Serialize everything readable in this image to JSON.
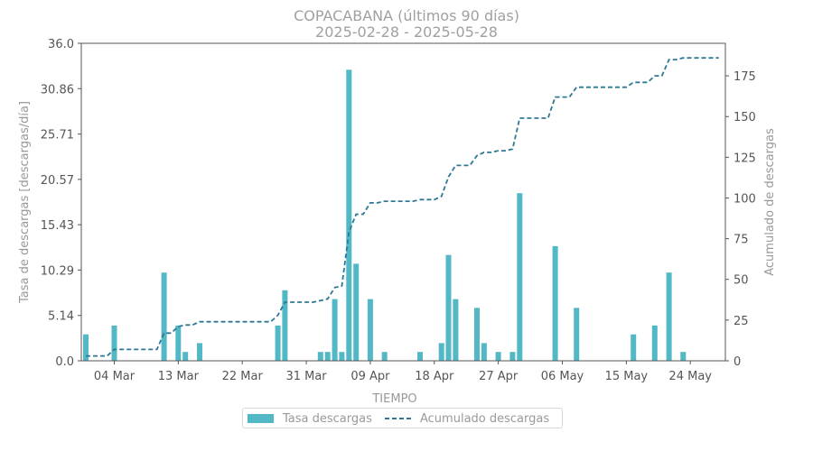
{
  "colors": {
    "bar": "#53b8c6",
    "line": "#2e7894",
    "axis": "#555555",
    "label": "#999999"
  },
  "chart_data": {
    "type": "bar+line",
    "title": "COPACABANA (últimos 90 días)",
    "subtitle": "2025-02-28  -  2025-05-28",
    "xlabel": "TIEMPO",
    "ylabel_left": "Tasa de descargas [descargas/día]",
    "ylabel_right": "Acumulado de descargas",
    "ylim_left": [
      0,
      36
    ],
    "ylim_right": [
      0,
      195
    ],
    "yticks_left": [
      "0.0",
      "5.14",
      "10.29",
      "15.43",
      "20.57",
      "25.71",
      "30.86",
      "36.0"
    ],
    "yticks_right": [
      "0",
      "25",
      "50",
      "75",
      "100",
      "125",
      "150",
      "175"
    ],
    "xticks": [
      {
        "label": "04 Mar",
        "day": 4
      },
      {
        "label": "13 Mar",
        "day": 13
      },
      {
        "label": "22 Mar",
        "day": 22
      },
      {
        "label": "31 Mar",
        "day": 31
      },
      {
        "label": "09 Apr",
        "day": 40
      },
      {
        "label": "18 Apr",
        "day": 49
      },
      {
        "label": "27 Apr",
        "day": 58
      },
      {
        "label": "06 May",
        "day": 67
      },
      {
        "label": "15 May",
        "day": 76
      },
      {
        "label": "24 May",
        "day": 85
      }
    ],
    "x_range_days": [
      0,
      89
    ],
    "bars": [
      {
        "day": 0,
        "value": 3
      },
      {
        "day": 4,
        "value": 4
      },
      {
        "day": 11,
        "value": 10
      },
      {
        "day": 13,
        "value": 4
      },
      {
        "day": 14,
        "value": 1
      },
      {
        "day": 16,
        "value": 2
      },
      {
        "day": 27,
        "value": 4
      },
      {
        "day": 28,
        "value": 8
      },
      {
        "day": 33,
        "value": 1
      },
      {
        "day": 34,
        "value": 1
      },
      {
        "day": 35,
        "value": 7
      },
      {
        "day": 36,
        "value": 1
      },
      {
        "day": 37,
        "value": 33
      },
      {
        "day": 38,
        "value": 11
      },
      {
        "day": 40,
        "value": 7
      },
      {
        "day": 42,
        "value": 1
      },
      {
        "day": 47,
        "value": 1
      },
      {
        "day": 50,
        "value": 2
      },
      {
        "day": 51,
        "value": 12
      },
      {
        "day": 52,
        "value": 7
      },
      {
        "day": 55,
        "value": 6
      },
      {
        "day": 56,
        "value": 2
      },
      {
        "day": 58,
        "value": 1
      },
      {
        "day": 60,
        "value": 1
      },
      {
        "day": 61,
        "value": 19
      },
      {
        "day": 66,
        "value": 13
      },
      {
        "day": 69,
        "value": 6
      },
      {
        "day": 77,
        "value": 3
      },
      {
        "day": 80,
        "value": 4
      },
      {
        "day": 82,
        "value": 10
      },
      {
        "day": 84,
        "value": 1
      }
    ],
    "cumulative": [
      {
        "day": 0,
        "value": 3
      },
      {
        "day": 3,
        "value": 3
      },
      {
        "day": 4,
        "value": 7
      },
      {
        "day": 10,
        "value": 7
      },
      {
        "day": 11,
        "value": 17
      },
      {
        "day": 12,
        "value": 17
      },
      {
        "day": 13,
        "value": 21
      },
      {
        "day": 14,
        "value": 22
      },
      {
        "day": 15,
        "value": 22
      },
      {
        "day": 16,
        "value": 24
      },
      {
        "day": 26,
        "value": 24
      },
      {
        "day": 27,
        "value": 28
      },
      {
        "day": 28,
        "value": 36
      },
      {
        "day": 32,
        "value": 36
      },
      {
        "day": 33,
        "value": 37
      },
      {
        "day": 34,
        "value": 38
      },
      {
        "day": 35,
        "value": 45
      },
      {
        "day": 36,
        "value": 46
      },
      {
        "day": 37,
        "value": 79
      },
      {
        "day": 38,
        "value": 90
      },
      {
        "day": 39,
        "value": 90
      },
      {
        "day": 40,
        "value": 97
      },
      {
        "day": 41,
        "value": 97
      },
      {
        "day": 42,
        "value": 98
      },
      {
        "day": 46,
        "value": 98
      },
      {
        "day": 47,
        "value": 99
      },
      {
        "day": 49,
        "value": 99
      },
      {
        "day": 50,
        "value": 101
      },
      {
        "day": 51,
        "value": 113
      },
      {
        "day": 52,
        "value": 120
      },
      {
        "day": 54,
        "value": 120
      },
      {
        "day": 55,
        "value": 126
      },
      {
        "day": 56,
        "value": 128
      },
      {
        "day": 57,
        "value": 128
      },
      {
        "day": 58,
        "value": 129
      },
      {
        "day": 59,
        "value": 129
      },
      {
        "day": 60,
        "value": 130
      },
      {
        "day": 61,
        "value": 149
      },
      {
        "day": 65,
        "value": 149
      },
      {
        "day": 66,
        "value": 162
      },
      {
        "day": 68,
        "value": 162
      },
      {
        "day": 69,
        "value": 168
      },
      {
        "day": 76,
        "value": 168
      },
      {
        "day": 77,
        "value": 171
      },
      {
        "day": 79,
        "value": 171
      },
      {
        "day": 80,
        "value": 175
      },
      {
        "day": 81,
        "value": 175
      },
      {
        "day": 82,
        "value": 185
      },
      {
        "day": 83,
        "value": 185
      },
      {
        "day": 84,
        "value": 186
      },
      {
        "day": 89,
        "value": 186
      }
    ],
    "legend": [
      "Tasa descargas",
      "Acumulado descargas"
    ],
    "legend_position": "bottom-center",
    "grid": false
  }
}
